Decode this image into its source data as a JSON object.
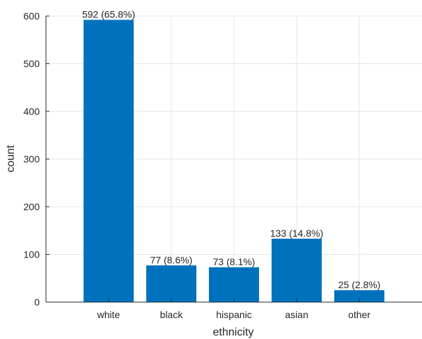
{
  "chart_data": {
    "type": "bar",
    "categories": [
      "white",
      "black",
      "hispanic",
      "asian",
      "other"
    ],
    "values": [
      592,
      77,
      73,
      133,
      25
    ],
    "bar_labels": [
      "592 (65.8%)",
      "77 (8.6%)",
      "73 (8.1%)",
      "133 (14.8%)",
      "25 (2.8%)"
    ],
    "xlabel": "ethnicity",
    "ylabel": "count",
    "ylim": [
      0,
      600
    ],
    "yticks": [
      0,
      100,
      200,
      300,
      400,
      500,
      600
    ],
    "grid": true,
    "bar_color": "#0072BD",
    "grid_color": "#e6e6e6",
    "axis_color": "#262626"
  }
}
